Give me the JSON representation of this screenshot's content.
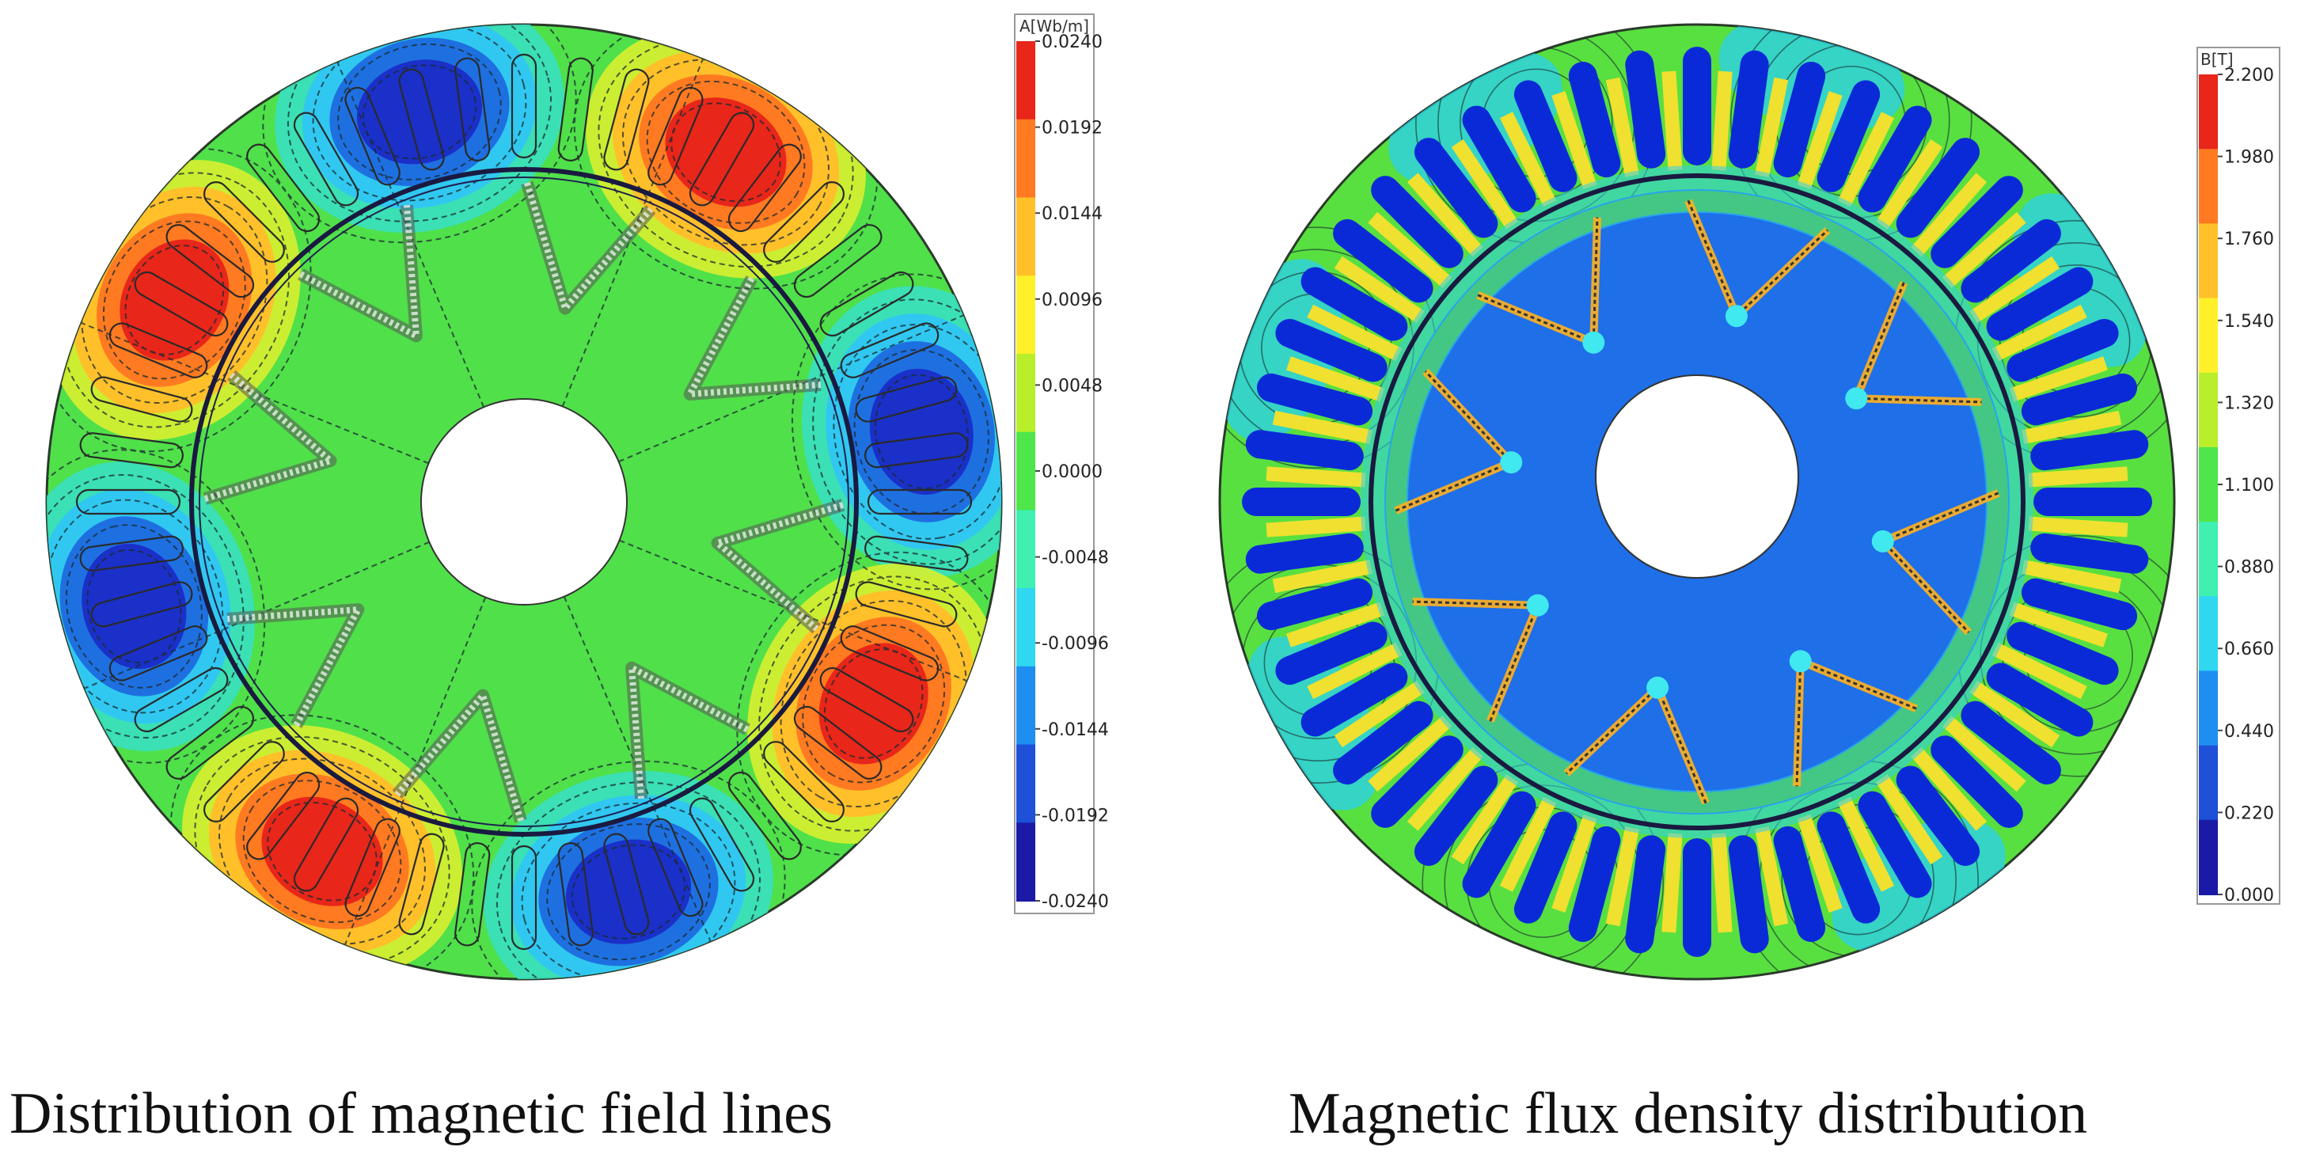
{
  "figures": [
    {
      "id": "left",
      "caption": "Distribution of magnetic field lines",
      "legend": {
        "unit": "A[Wb/m]",
        "ticks": [
          "0.0240",
          "0.0192",
          "0.0144",
          "0.0096",
          "0.0048",
          "0.0000",
          "-0.0048",
          "-0.0096",
          "-0.0144",
          "-0.0192",
          "-0.0240"
        ]
      }
    },
    {
      "id": "right",
      "caption": "Magnetic flux density distribution",
      "legend": {
        "unit": "B[T]",
        "ticks": [
          "2.200",
          "1.980",
          "1.760",
          "1.540",
          "1.320",
          "1.100",
          "0.880",
          "0.660",
          "0.440",
          "0.220",
          "0.000"
        ]
      }
    }
  ],
  "colors": {
    "colormap": [
      "#1a1aa6",
      "#1e50d8",
      "#1e8ff0",
      "#30d7f0",
      "#3ff0b0",
      "#4ee64a",
      "#b9ee2a",
      "#fff02a",
      "#ffc02a",
      "#ff7a20",
      "#e8261a"
    ],
    "left_background": "#50e04a",
    "left_positive_pole": "#e8261a",
    "left_negative_pole": "#1a30c8",
    "right_background": "#58e040",
    "right_slot": "#0a2ad8",
    "right_tooth": "#f0e030",
    "right_rotor_core": "#1e6fe8",
    "contour_line": "#1a2a30"
  }
}
